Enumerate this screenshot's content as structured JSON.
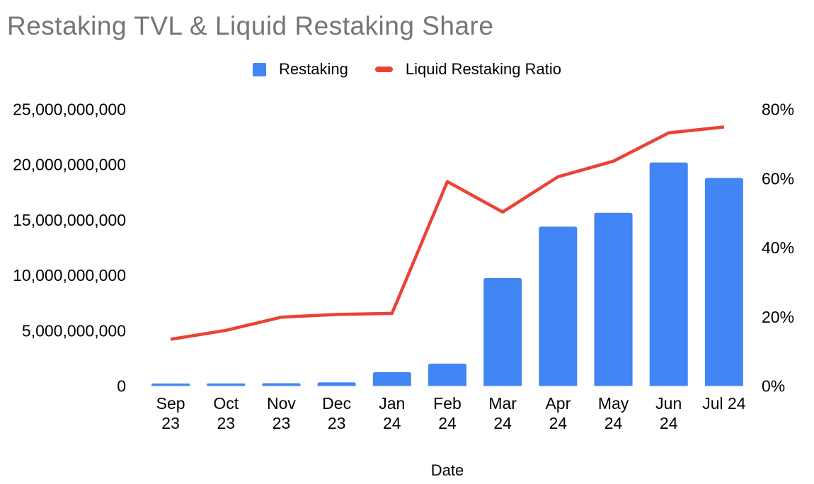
{
  "chart_data": {
    "type": "combo",
    "title": "Restaking TVL & Liquid Restaking Share",
    "xlabel": "Date",
    "ylabel_left": "",
    "ylabel_right": "",
    "categories": [
      "Sep 23",
      "Oct 23",
      "Nov 23",
      "Dec 23",
      "Jan 24",
      "Feb 24",
      "Mar 24",
      "Apr 24",
      "May 24",
      "Jun 24",
      "Jul 24"
    ],
    "category_labels": [
      [
        "Sep",
        "23"
      ],
      [
        "Oct",
        "23"
      ],
      [
        "Nov",
        "23"
      ],
      [
        "Dec",
        "23"
      ],
      [
        "Jan",
        "24"
      ],
      [
        "Feb",
        "24"
      ],
      [
        "Mar",
        "24"
      ],
      [
        "Apr",
        "24"
      ],
      [
        "May",
        "24"
      ],
      [
        "Jun",
        "24"
      ],
      [
        "Jul 24"
      ]
    ],
    "series": [
      {
        "name": "Restaking",
        "type": "bar",
        "axis": "left",
        "color": "#4285F4",
        "values": [
          220000000,
          230000000,
          250000000,
          330000000,
          1250000000,
          2020000000,
          9750000000,
          14400000000,
          15650000000,
          20200000000,
          18800000000
        ]
      },
      {
        "name": "Liquid Restaking Ratio",
        "type": "line",
        "axis": "right",
        "color": "#EA4335",
        "values_percent": [
          13.5,
          16.1,
          19.9,
          20.7,
          21.0,
          59.1,
          50.3,
          60.5,
          65.0,
          73.2,
          74.9
        ]
      }
    ],
    "left_axis": {
      "min": 0,
      "max": 25000000000,
      "ticks": [
        "0",
        "5,000,000,000",
        "10,000,000,000",
        "15,000,000,000",
        "20,000,000,000",
        "25,000,000,000"
      ]
    },
    "right_axis": {
      "min": 0,
      "max": 80,
      "ticks": [
        "0%",
        "20%",
        "40%",
        "60%",
        "80%"
      ]
    },
    "grid": false,
    "legend_position": "top"
  },
  "colors": {
    "background": "#ffffff",
    "title_text": "#757575",
    "axis_text": "#000000",
    "bar": "#4285F4",
    "line": "#EA4335"
  }
}
